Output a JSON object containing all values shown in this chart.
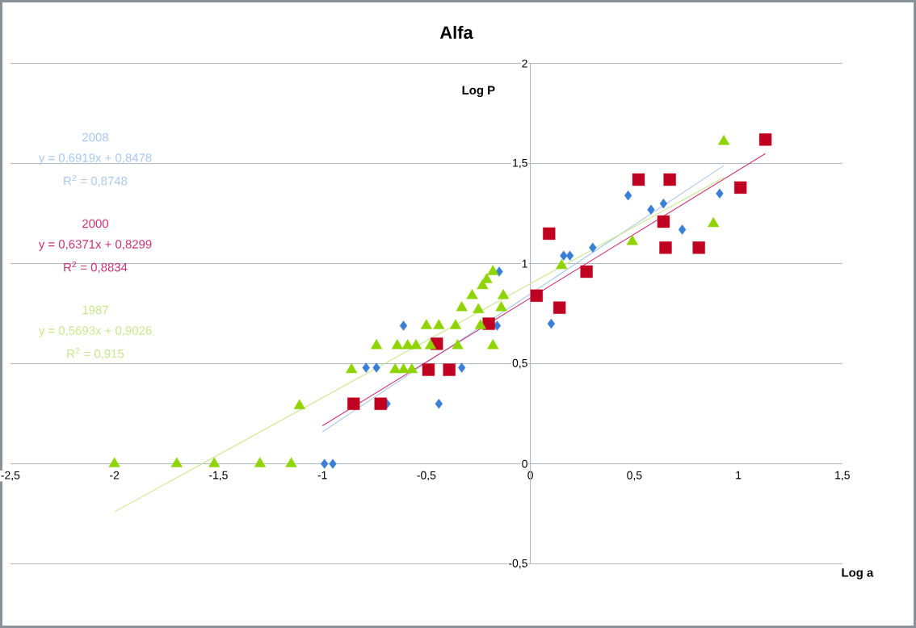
{
  "chart_data": {
    "type": "scatter",
    "title": "Alfa",
    "xlabel": "Log a",
    "ylabel": "Log P",
    "xlim": [
      -2.5,
      1.5
    ],
    "ylim": [
      -0.5,
      2
    ],
    "xticks": [
      {
        "value": -2.5,
        "label": "-2,5"
      },
      -2,
      {
        "value": -1.5,
        "label": "-1,5"
      },
      -1,
      {
        "value": -0.5,
        "label": "-0,5"
      },
      0,
      {
        "value": 0.5,
        "label": "0,5"
      },
      1,
      {
        "value": 1.5,
        "label": "1,5"
      }
    ],
    "yticks": [
      {
        "value": -0.5,
        "label": "-0,5"
      },
      0,
      {
        "value": 0.5,
        "label": "0,5"
      },
      1,
      {
        "value": 1.5,
        "label": "1,5"
      },
      2
    ],
    "grid": "y",
    "series": [
      {
        "marker": "diamond",
        "color": "#3a7fd5",
        "x": [
          -0.15,
          -0.61,
          -0.16,
          -0.79,
          -0.74,
          -0.33,
          -0.69,
          -0.44,
          -0.99,
          -0.95,
          0.47,
          0.58,
          0.64,
          0.91,
          0.73,
          0.3,
          0.16,
          0.19,
          0.1
        ],
        "values": [
          0.96,
          0.69,
          0.69,
          0.48,
          0.48,
          0.48,
          0.3,
          0.3,
          0,
          0,
          1.34,
          1.27,
          1.3,
          1.35,
          1.17,
          1.08,
          1.04,
          1.04,
          0.7
        ]
      },
      {
        "marker": "square",
        "color": "#c00020",
        "x": [
          0.03,
          -0.2,
          -0.45,
          -0.49,
          -0.39,
          -0.85,
          -0.72,
          0.52,
          0.67,
          1.01,
          1.13,
          0.09,
          0.64,
          0.65,
          0.81,
          0.27,
          0.14
        ],
        "values": [
          0.84,
          0.7,
          0.6,
          0.47,
          0.47,
          0.3,
          0.3,
          1.42,
          1.42,
          1.38,
          1.62,
          1.15,
          1.21,
          1.08,
          1.08,
          0.96,
          0.78
        ]
      },
      {
        "marker": "triangle",
        "color": "#8fd400",
        "x": [
          -0.18,
          -0.21,
          -0.23,
          -0.28,
          -0.13,
          -0.33,
          -0.25,
          -0.14,
          -0.5,
          -0.44,
          -0.36,
          -0.24,
          -0.74,
          -0.64,
          -0.59,
          -0.55,
          -0.48,
          -0.35,
          -0.18,
          -0.86,
          -0.65,
          -0.61,
          -0.57,
          -1.11,
          -2.0,
          -1.7,
          -1.52,
          -1.3,
          -1.15,
          0.93,
          0.88,
          0.49,
          0.15
        ],
        "values": [
          0.96,
          0.92,
          0.89,
          0.84,
          0.84,
          0.78,
          0.77,
          0.78,
          0.69,
          0.69,
          0.69,
          0.69,
          0.59,
          0.59,
          0.59,
          0.59,
          0.59,
          0.59,
          0.59,
          0.47,
          0.47,
          0.47,
          0.47,
          0.29,
          0,
          0,
          0,
          0,
          0,
          1.61,
          1.2,
          1.11,
          0.99
        ]
      },
      {
        "type": "line",
        "marker": "none",
        "color": "#a9c8ee",
        "x": [
          -1.0,
          0.93
        ],
        "values": [
          0.16,
          1.49
        ]
      },
      {
        "type": "line",
        "marker": "none",
        "color": "#cc3377",
        "x": [
          -1.0,
          1.13
        ],
        "values": [
          0.19,
          1.55
        ]
      },
      {
        "type": "line",
        "marker": "none",
        "color": "#c8e68c",
        "x": [
          -2.0,
          0.93
        ],
        "values": [
          -0.24,
          1.43
        ]
      }
    ],
    "annotations": [
      "2008",
      "y = 0,6919x + 0,8478",
      "R$^{2}$ = 0,8748",
      "2000",
      "y = 0,6371x + 0,8299",
      "R$^{2}$ = 0,8834",
      "1987",
      "y = 0,5693x + 0,9026",
      "R$^{2}$ = 0,915"
    ]
  }
}
